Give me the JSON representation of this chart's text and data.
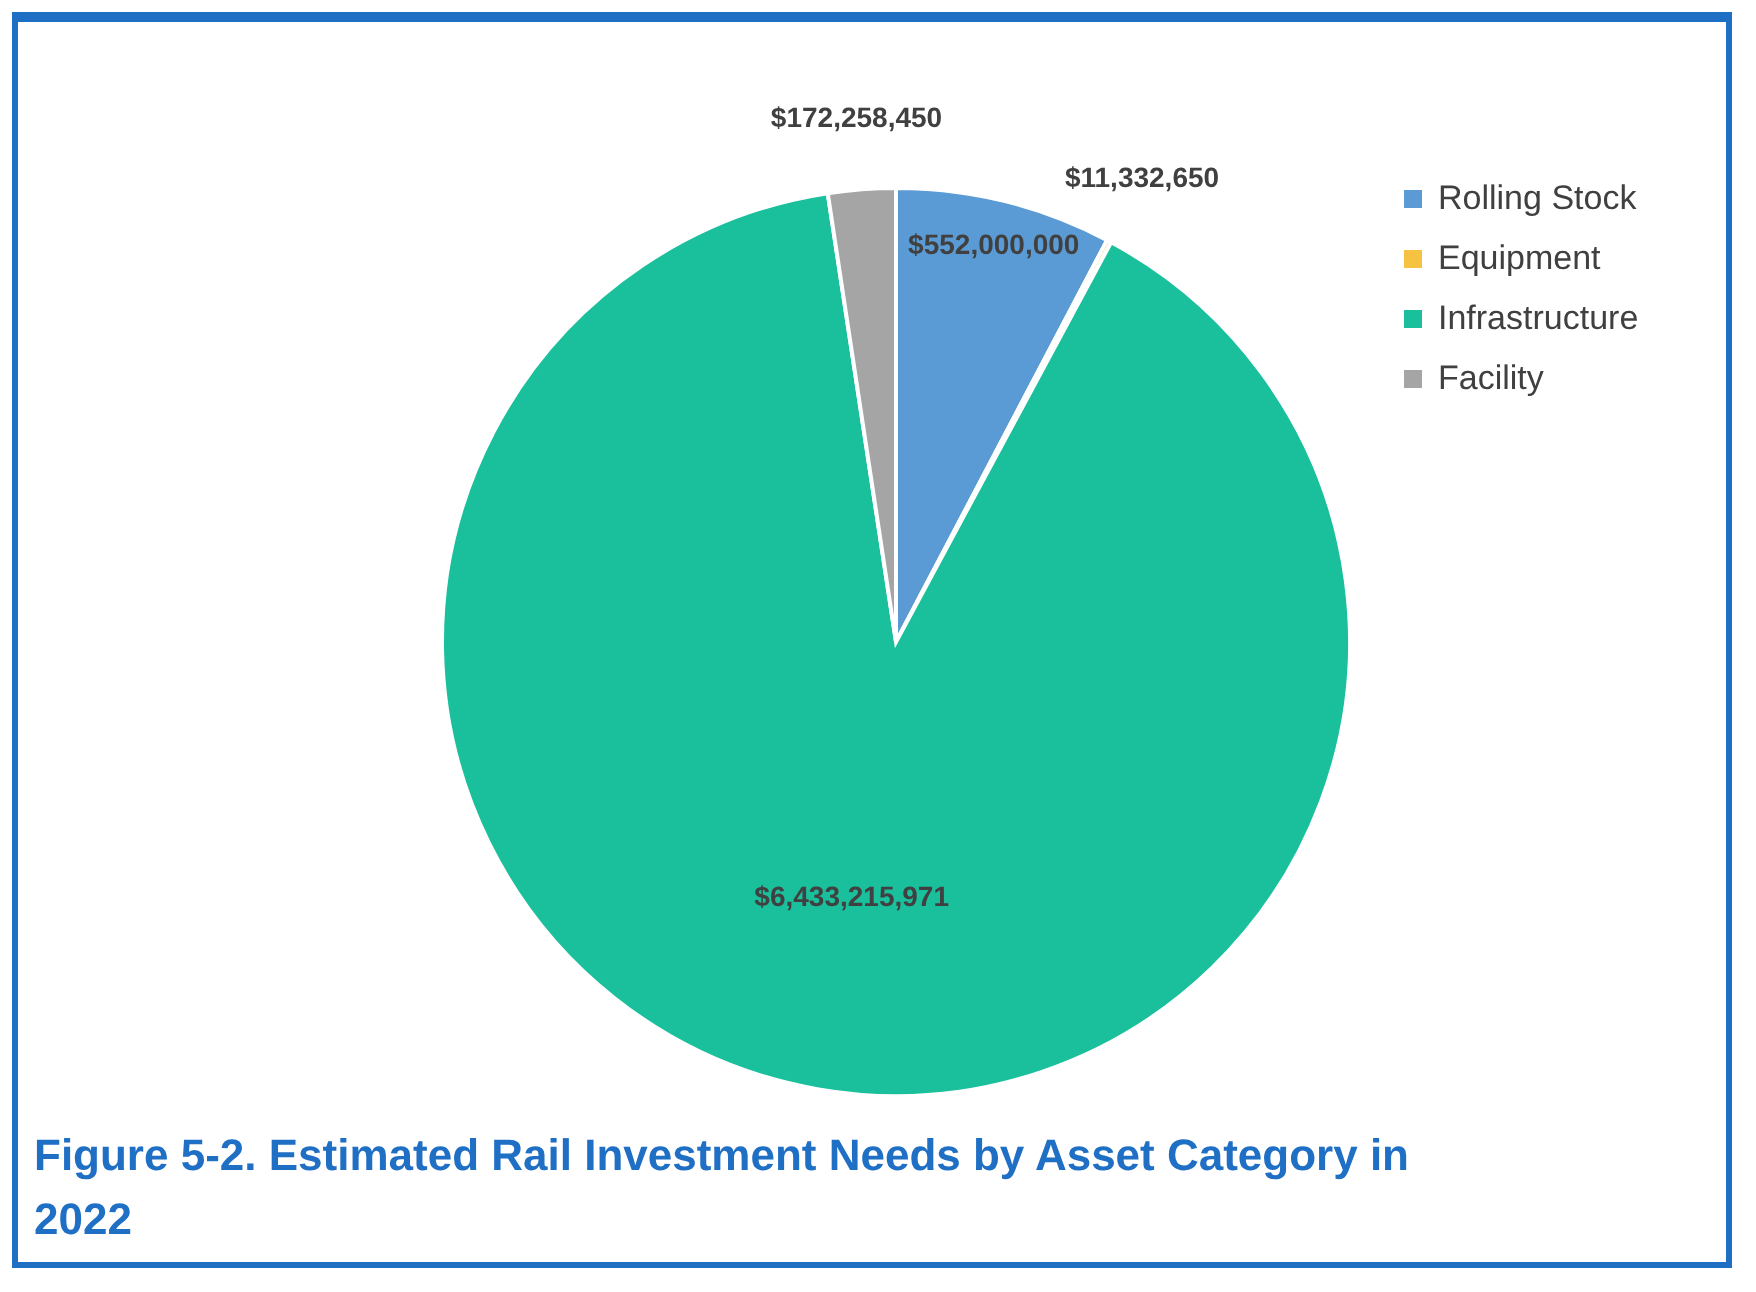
{
  "chart_data": {
    "type": "pie",
    "title": "Figure 5-2. Estimated Rail Investment Needs by Asset Category in 2022",
    "categories": [
      "Rolling Stock",
      "Equipment",
      "Infrastructure",
      "Facility"
    ],
    "values": [
      552000000,
      11332650,
      6433215971,
      172258450
    ],
    "colors": [
      "#5b9bd5",
      "#f5c242",
      "#1abf9c",
      "#a5a5a5"
    ],
    "value_labels": [
      "$552,000,000",
      "$11,332,650",
      "$6,433,215,971",
      "$172,258,450"
    ],
    "legend": "right"
  }
}
